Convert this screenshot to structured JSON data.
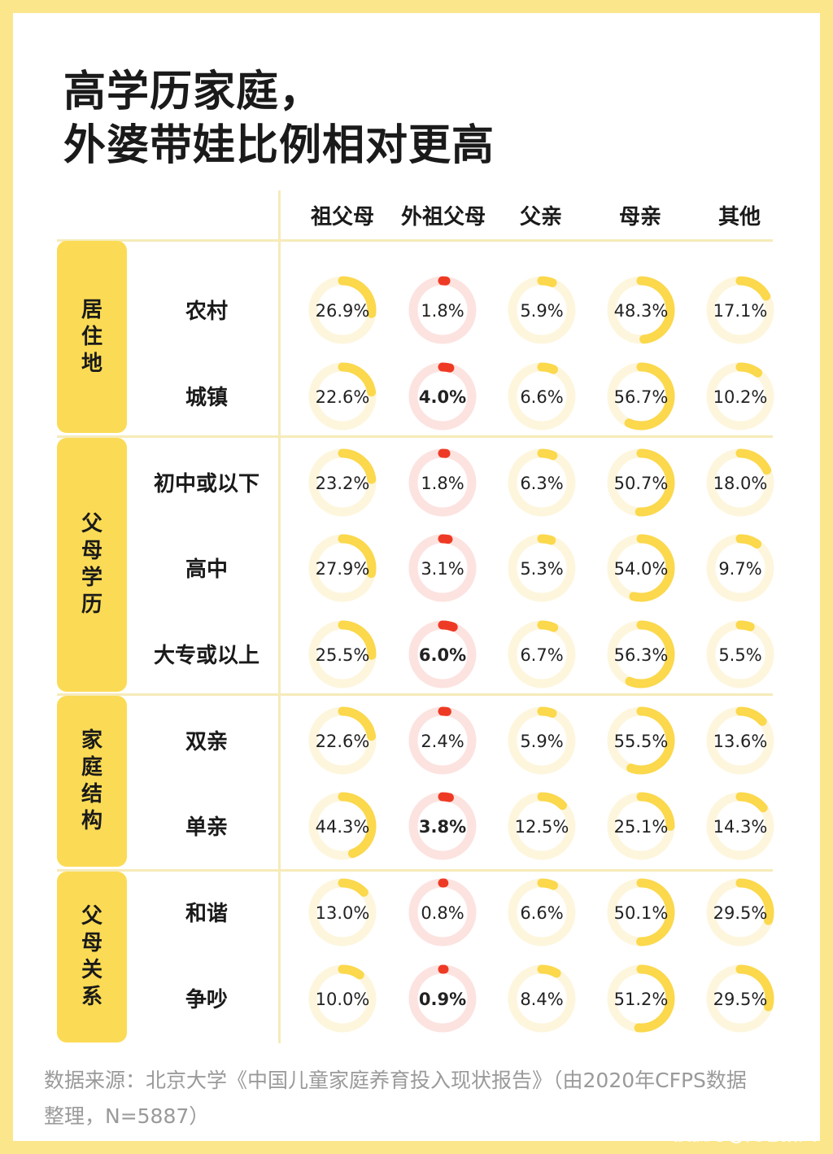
{
  "title_lines": [
    "高学历家庭，",
    "外婆带娃比例相对更高"
  ],
  "source_lines": [
    "数据来源：北京大学《中国儿童家庭养育投入现状报告》（由2020年CFPS数据",
    "整理，N=5887）"
  ],
  "watermark": "搜狐号@闾巷拾风",
  "colors": {
    "yellow": "#fbd84c",
    "yellow_track": "#fdf6dd",
    "red": "#ee3a24",
    "red_track": "#fce3e0",
    "background": "#fbe68b"
  },
  "groups": [
    {
      "label": "居住地",
      "chars": [
        "居",
        "住",
        "地"
      ]
    },
    {
      "label": "父母学历",
      "chars": [
        "父",
        "母",
        "学",
        "历"
      ]
    },
    {
      "label": "家庭结构",
      "chars": [
        "家",
        "庭",
        "结",
        "构"
      ]
    },
    {
      "label": "父母关系",
      "chars": [
        "父",
        "母",
        "关",
        "系"
      ]
    }
  ],
  "chart_data": {
    "type": "table",
    "columns": [
      "祖父母",
      "外祖父母",
      "父亲",
      "母亲",
      "其他"
    ],
    "rows": [
      {
        "group": "居住地",
        "label": "农村",
        "values": [
          26.9,
          1.8,
          5.9,
          48.3,
          17.1
        ],
        "display": [
          "26.9%",
          "1.8%",
          "5.9%",
          "48.3%",
          "17.1%"
        ],
        "bold_index": -1
      },
      {
        "group": "居住地",
        "label": "城镇",
        "values": [
          22.6,
          4.0,
          6.6,
          56.7,
          10.2
        ],
        "display": [
          "22.6%",
          "4.0%",
          "6.6%",
          "56.7%",
          "10.2%"
        ],
        "bold_index": 1
      },
      {
        "group": "父母学历",
        "label": "初中或以下",
        "values": [
          23.2,
          1.8,
          6.3,
          50.7,
          18.0
        ],
        "display": [
          "23.2%",
          "1.8%",
          "6.3%",
          "50.7%",
          "18.0%"
        ],
        "bold_index": -1
      },
      {
        "group": "父母学历",
        "label": "高中",
        "values": [
          27.9,
          3.1,
          5.3,
          54.0,
          9.7
        ],
        "display": [
          "27.9%",
          "3.1%",
          "5.3%",
          "54.0%",
          "9.7%"
        ],
        "bold_index": -1
      },
      {
        "group": "父母学历",
        "label": "大专或以上",
        "values": [
          25.5,
          6.0,
          6.7,
          56.3,
          5.5
        ],
        "display": [
          "25.5%",
          "6.0%",
          "6.7%",
          "56.3%",
          "5.5%"
        ],
        "bold_index": 1
      },
      {
        "group": "家庭结构",
        "label": "双亲",
        "values": [
          22.6,
          2.4,
          5.9,
          55.5,
          13.6
        ],
        "display": [
          "22.6%",
          "2.4%",
          "5.9%",
          "55.5%",
          "13.6%"
        ],
        "bold_index": -1
      },
      {
        "group": "家庭结构",
        "label": "单亲",
        "values": [
          44.3,
          3.8,
          12.5,
          25.1,
          14.3
        ],
        "display": [
          "44.3%",
          "3.8%",
          "12.5%",
          "25.1%",
          "14.3%"
        ],
        "bold_index": 1
      },
      {
        "group": "父母关系",
        "label": "和谐",
        "values": [
          13.0,
          0.8,
          6.6,
          50.1,
          29.5
        ],
        "display": [
          "13.0%",
          "0.8%",
          "6.6%",
          "50.1%",
          "29.5%"
        ],
        "bold_index": -1
      },
      {
        "group": "父母关系",
        "label": "争吵",
        "values": [
          10.0,
          0.9,
          8.4,
          51.2,
          29.5
        ],
        "display": [
          "10.0%",
          "0.9%",
          "8.4%",
          "51.2%",
          "29.5%"
        ],
        "bold_index": 1
      }
    ],
    "highlight_column": "外祖父母"
  }
}
